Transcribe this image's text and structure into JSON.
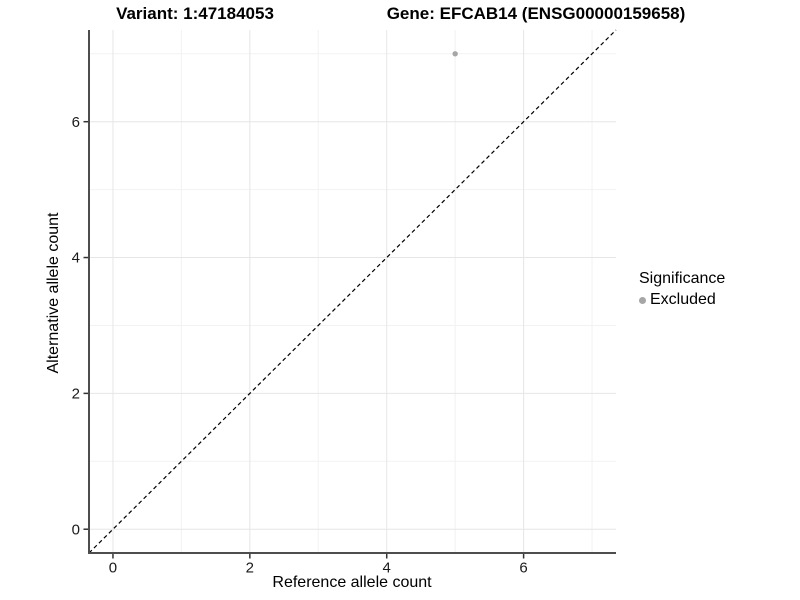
{
  "chart_data": {
    "type": "scatter",
    "title_left": "Variant: 1:47184053",
    "title_right": "Gene: EFCAB14 (ENSG00000159658)",
    "xlabel": "Reference allele count",
    "ylabel": "Alternative allele count",
    "xlim": [
      -0.35,
      7.35
    ],
    "ylim": [
      -0.35,
      7.35
    ],
    "major_ticks": [
      0,
      2,
      4,
      6
    ],
    "minor_ticks": [
      1,
      3,
      5,
      7
    ],
    "grid": true,
    "identity_line": {
      "style": "dashed",
      "from": [
        -0.35,
        -0.35
      ],
      "to": [
        7.35,
        7.35
      ],
      "color": "#000000"
    },
    "points": [
      {
        "x": 5,
        "y": 7,
        "series": "Excluded"
      }
    ],
    "legend": {
      "title": "Significance",
      "position": "right",
      "entries": [
        {
          "label": "Excluded",
          "color": "#a6a6a6"
        }
      ]
    },
    "colors": {
      "grid_major": "#e6e6e6",
      "grid_minor": "#f2f2f2",
      "axis_line": "#4d4d4d",
      "tick_mark": "#333333",
      "tick_label": "#1a1a1a",
      "panel_background": "#ffffff"
    }
  }
}
